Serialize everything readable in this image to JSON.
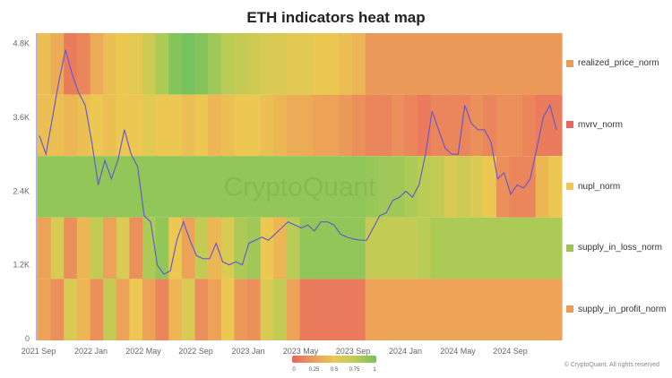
{
  "chart_data": {
    "type": "heatmap",
    "title": "ETH indicators heat map",
    "x_tick_labels": [
      "2021 Sep",
      "2022 Jan",
      "2022 May",
      "2022 Sep",
      "2023 Jan",
      "2023 May",
      "2023 Sep",
      "2024 Jan",
      "2024 May",
      "2024 Sep"
    ],
    "months": [
      "2021-09",
      "2021-10",
      "2021-11",
      "2021-12",
      "2022-01",
      "2022-02",
      "2022-03",
      "2022-04",
      "2022-05",
      "2022-06",
      "2022-07",
      "2022-08",
      "2022-09",
      "2022-10",
      "2022-11",
      "2022-12",
      "2023-01",
      "2023-02",
      "2023-03",
      "2023-04",
      "2023-05",
      "2023-06",
      "2023-07",
      "2023-08",
      "2023-09",
      "2023-10",
      "2023-11",
      "2023-12",
      "2024-01",
      "2024-02",
      "2024-03",
      "2024-04",
      "2024-05",
      "2024-06",
      "2024-07",
      "2024-08",
      "2024-09",
      "2024-10",
      "2024-11",
      "2024-12"
    ],
    "rows": [
      {
        "name": "realized_price_norm",
        "color": "#ec9a5a",
        "values": [
          0.45,
          0.35,
          0.1,
          0.15,
          0.35,
          0.45,
          0.5,
          0.55,
          0.65,
          0.8,
          0.95,
          1,
          0.95,
          0.85,
          0.75,
          0.7,
          0.65,
          0.6,
          0.6,
          0.55,
          0.55,
          0.5,
          0.5,
          0.45,
          0.4,
          0.25,
          0.25,
          0.25,
          0.25,
          0.25,
          0.25,
          0.25,
          0.25,
          0.25,
          0.25,
          0.25,
          0.25,
          0.25,
          0.25,
          0.25
        ]
      },
      {
        "name": "mvrv_norm",
        "color": "#e8665f",
        "values": [
          0.45,
          0.45,
          0.4,
          0.45,
          0.5,
          0.45,
          0.5,
          0.5,
          0.55,
          0.5,
          0.5,
          0.45,
          0.5,
          0.4,
          0.45,
          0.5,
          0.5,
          0.45,
          0.4,
          0.35,
          0.35,
          0.3,
          0.3,
          0.25,
          0.2,
          0.15,
          0.15,
          0.2,
          0.15,
          0.1,
          0.15,
          0.15,
          0.15,
          0.2,
          0.15,
          0.2,
          0.2,
          0.15,
          0.1,
          0.1
        ]
      },
      {
        "name": "nupl_norm",
        "color": "#ecc852",
        "values": [
          0.9,
          0.9,
          0.9,
          0.9,
          0.9,
          0.9,
          0.9,
          0.9,
          0.9,
          0.9,
          0.9,
          0.9,
          0.9,
          0.9,
          0.9,
          0.9,
          0.9,
          0.9,
          0.9,
          0.9,
          0.9,
          0.9,
          0.9,
          0.9,
          0.9,
          0.88,
          0.85,
          0.85,
          0.8,
          0.75,
          0.7,
          0.6,
          0.65,
          0.6,
          0.5,
          0.2,
          0.15,
          0.15,
          0.4,
          0.5
        ]
      },
      {
        "name": "supply_in_loss_norm",
        "color": "#9cc455",
        "values": [
          0.3,
          0.6,
          0.2,
          0.4,
          0.7,
          0.3,
          0.6,
          0.2,
          0.8,
          0.9,
          0.5,
          0.3,
          0.7,
          0.4,
          0.6,
          0.8,
          0.85,
          0.5,
          0.4,
          0.75,
          0.9,
          0.9,
          0.9,
          0.9,
          0.9,
          0.7,
          0.7,
          0.7,
          0.7,
          0.75,
          0.8,
          0.8,
          0.8,
          0.8,
          0.8,
          0.8,
          0.8,
          0.8,
          0.8,
          0.8
        ]
      },
      {
        "name": "supply_in_profit_norm",
        "color": "#ec9a5a",
        "values": [
          0.3,
          0.2,
          0.6,
          0.4,
          0.2,
          0.7,
          0.3,
          0.5,
          0.3,
          0.15,
          0.4,
          0.6,
          0.2,
          0.3,
          0.5,
          0.25,
          0.2,
          0.6,
          0.7,
          0.3,
          0.1,
          0.1,
          0.1,
          0.1,
          0.1,
          0.3,
          0.3,
          0.3,
          0.3,
          0.3,
          0.3,
          0.3,
          0.3,
          0.3,
          0.3,
          0.3,
          0.3,
          0.3,
          0.3,
          0.3
        ]
      }
    ],
    "price_series": {
      "y_tick_labels": [
        "0",
        "1.2K",
        "2.4K",
        "3.6K",
        "4.8K"
      ],
      "ylim": [
        0,
        5000
      ],
      "color": "#6a5acd",
      "values": [
        3300,
        3000,
        3600,
        4200,
        4700,
        4300,
        4000,
        3800,
        3200,
        2500,
        2900,
        2600,
        2900,
        3400,
        3000,
        2800,
        2000,
        1900,
        1200,
        1050,
        1100,
        1600,
        1900,
        1600,
        1350,
        1300,
        1300,
        1550,
        1250,
        1200,
        1250,
        1200,
        1550,
        1600,
        1650,
        1600,
        1700,
        1800,
        1900,
        1850,
        1800,
        1850,
        1750,
        1900,
        1900,
        1850,
        1700,
        1650,
        1620,
        1600,
        1600,
        1800,
        2000,
        2050,
        2250,
        2300,
        2400,
        2300,
        2500,
        3000,
        3700,
        3400,
        3100,
        3000,
        3000,
        3800,
        3500,
        3400,
        3400,
        3200,
        2600,
        2700,
        2350,
        2500,
        2450,
        2600,
        3100,
        3600,
        3800,
        3400
      ]
    },
    "colorscale": {
      "stops": [
        0,
        0.25,
        0.5,
        0.75,
        1
      ],
      "labels": [
        "0",
        "0.25",
        "0.5",
        "0.75",
        "1"
      ],
      "colors": [
        "#e8665f",
        "#ec9a5a",
        "#ecc852",
        "#b9cc55",
        "#77c25c"
      ]
    },
    "legend_placement": "right"
  },
  "watermark": "CryptoQuant",
  "copyright": "© CryptoQuant. All rights reserved"
}
